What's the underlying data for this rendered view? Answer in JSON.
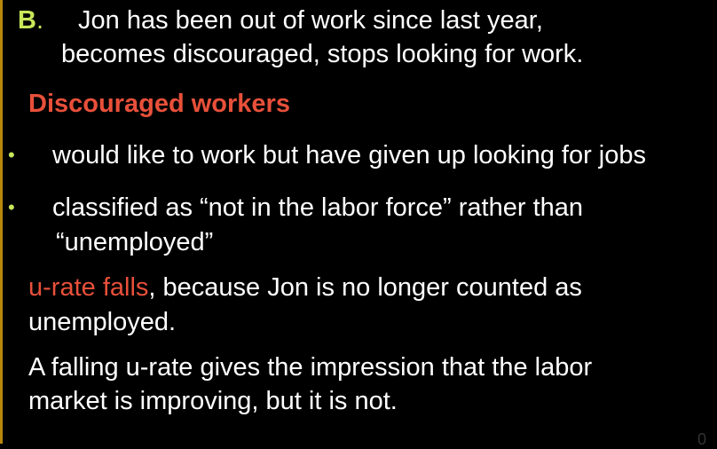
{
  "slide": {
    "label_letter": "B",
    "label_dot": ".",
    "intro_line1": "Jon has been out of work since last year,",
    "intro_line2": "becomes discouraged, stops looking for work.",
    "heading": "Discouraged workers",
    "bullet_glyph": "•",
    "bullets": [
      {
        "text": "would like to work but have given up looking for jobs"
      },
      {
        "line1": "classified as “not in the labor force” rather than",
        "line2": "“unemployed”"
      }
    ],
    "urate_highlight": "u-rate falls",
    "urate_rest": ", because Jon is no longer counted as",
    "urate_line2": "unemployed.",
    "closing_line1": "A falling u-rate gives the impression that the labor",
    "closing_line2": "market is improving, but it is not.",
    "page_number": "0"
  },
  "colors": {
    "background": "#000000",
    "text": "#ffffff",
    "accent_red": "#e8503a",
    "accent_green": "#c8e65a",
    "rule": "#b8860b"
  }
}
